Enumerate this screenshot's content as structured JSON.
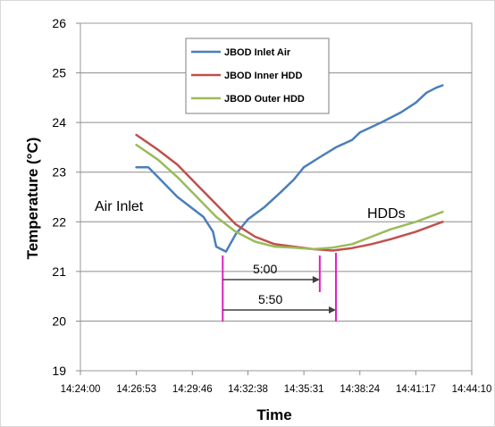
{
  "chart_data": {
    "type": "line",
    "xlabel": "Time",
    "ylabel": "Temperature (°C)",
    "ylim": [
      19,
      26
    ],
    "y_ticks": [
      "19",
      "20",
      "21",
      "22",
      "23",
      "24",
      "25",
      "26"
    ],
    "x_ticks": [
      "14:24:00",
      "14:26:53",
      "14:29:46",
      "14:32:38",
      "14:35:31",
      "14:38:24",
      "14:41:17",
      "14:44:10"
    ],
    "grid": "horizontal",
    "legend_position": "top-left",
    "series": [
      {
        "name": "JBOD Inlet Air",
        "color": "#4a7ebb",
        "x": [
          "14:26:53",
          "14:27:30",
          "14:28:00",
          "14:28:30",
          "14:29:00",
          "14:29:40",
          "14:30:20",
          "14:30:50",
          "14:31:00",
          "14:31:30",
          "14:32:00",
          "14:32:38",
          "14:33:30",
          "14:34:20",
          "14:35:00",
          "14:35:31",
          "14:36:20",
          "14:37:10",
          "14:38:00",
          "14:38:24",
          "14:39:30",
          "14:40:30",
          "14:41:17",
          "14:41:50",
          "14:42:20",
          "14:42:40"
        ],
        "values": [
          23.1,
          23.1,
          22.9,
          22.7,
          22.5,
          22.3,
          22.1,
          21.8,
          21.5,
          21.4,
          21.75,
          22.05,
          22.3,
          22.6,
          22.85,
          23.1,
          23.3,
          23.5,
          23.65,
          23.8,
          24.0,
          24.2,
          24.4,
          24.6,
          24.7,
          24.75
        ]
      },
      {
        "name": "JBOD Inner HDD",
        "color": "#c0504d",
        "x": [
          "14:26:53",
          "14:28:00",
          "14:29:00",
          "14:30:00",
          "14:31:00",
          "14:32:00",
          "14:33:00",
          "14:34:00",
          "14:35:00",
          "14:36:00",
          "14:37:00",
          "14:38:00",
          "14:39:00",
          "14:40:00",
          "14:41:17",
          "14:42:40"
        ],
        "values": [
          23.75,
          23.45,
          23.15,
          22.75,
          22.35,
          21.95,
          21.7,
          21.55,
          21.5,
          21.45,
          21.42,
          21.47,
          21.55,
          21.65,
          21.8,
          22.0
        ]
      },
      {
        "name": "JBOD Outer HDD",
        "color": "#9bbb59",
        "x": [
          "14:26:53",
          "14:28:00",
          "14:29:00",
          "14:30:00",
          "14:31:00",
          "14:32:00",
          "14:33:00",
          "14:34:00",
          "14:35:00",
          "14:36:00",
          "14:37:00",
          "14:38:00",
          "14:39:00",
          "14:40:00",
          "14:41:17",
          "14:42:40"
        ],
        "values": [
          23.55,
          23.25,
          22.9,
          22.5,
          22.1,
          21.8,
          21.6,
          21.5,
          21.48,
          21.45,
          21.48,
          21.55,
          21.7,
          21.85,
          22.0,
          22.2
        ]
      }
    ],
    "annotations": [
      {
        "text": "Air Inlet"
      },
      {
        "text": "HDDs"
      }
    ],
    "intervals": [
      {
        "label": "5:00",
        "start": "14:31:20",
        "end": "14:36:20"
      },
      {
        "label": "5:50",
        "start": "14:31:20",
        "end": "14:37:10"
      }
    ],
    "marker_color": "#e020c0"
  }
}
